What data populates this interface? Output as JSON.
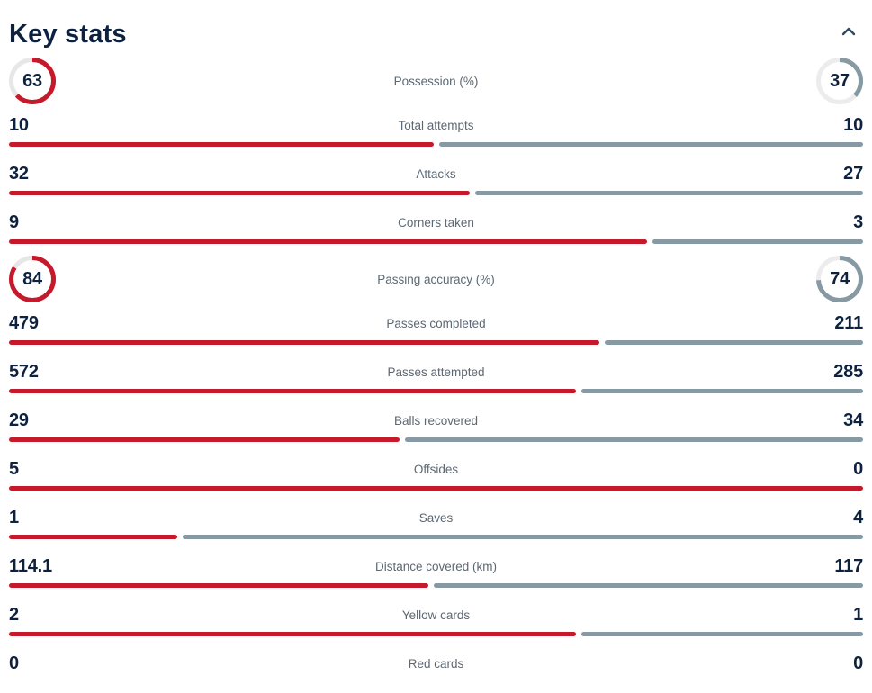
{
  "header": {
    "title": "Key stats",
    "collapse_icon": "chevron-up-icon"
  },
  "colors": {
    "home": "#c51a2b",
    "away": "#8799a3",
    "track_home": "#e7e7e7",
    "track_away": "#ececec",
    "navy": "#0e2240",
    "label": "#5c6873",
    "chevron": "#2f4a63"
  },
  "chart_data": {
    "type": "bar",
    "title": "Key stats",
    "legend_position": "none",
    "series": [
      {
        "name": "home",
        "color": "#c51a2b"
      },
      {
        "name": "away",
        "color": "#8799a3"
      }
    ],
    "rows": [
      {
        "type": "circle",
        "label": "Possession (%)",
        "home": "63",
        "away": "37"
      },
      {
        "type": "bar",
        "label": "Total attempts",
        "home": "10",
        "away": "10"
      },
      {
        "type": "bar",
        "label": "Attacks",
        "home": "32",
        "away": "27"
      },
      {
        "type": "bar",
        "label": "Corners taken",
        "home": "9",
        "away": "3"
      },
      {
        "type": "circle",
        "label": "Passing accuracy (%)",
        "home": "84",
        "away": "74"
      },
      {
        "type": "bar",
        "label": "Passes completed",
        "home": "479",
        "away": "211"
      },
      {
        "type": "bar",
        "label": "Passes attempted",
        "home": "572",
        "away": "285"
      },
      {
        "type": "bar",
        "label": "Balls recovered",
        "home": "29",
        "away": "34"
      },
      {
        "type": "bar",
        "label": "Offsides",
        "home": "5",
        "away": "0"
      },
      {
        "type": "bar",
        "label": "Saves",
        "home": "1",
        "away": "4"
      },
      {
        "type": "bar",
        "label": "Distance covered (km)",
        "home": "114.1",
        "away": "117"
      },
      {
        "type": "bar",
        "label": "Yellow cards",
        "home": "2",
        "away": "1"
      },
      {
        "type": "bar",
        "label": "Red cards",
        "home": "0",
        "away": "0"
      }
    ]
  }
}
